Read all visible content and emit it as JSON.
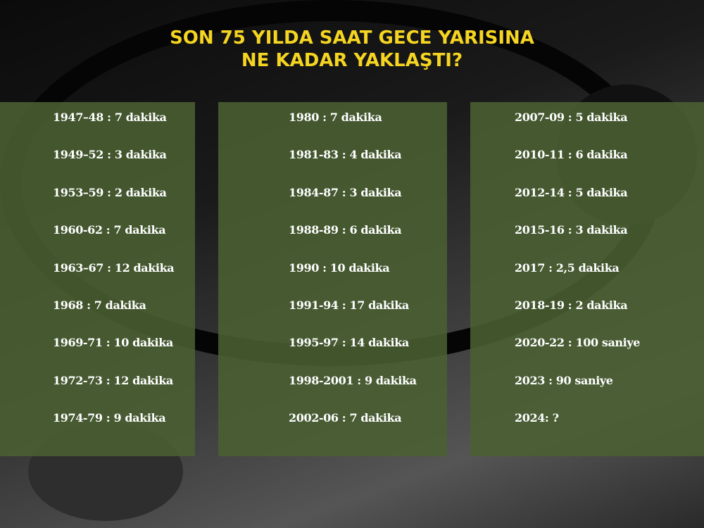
{
  "title": {
    "line1": "SON 75 YILDA SAAT GECE YARISINA",
    "line2": "NE KADAR YAKLAŞTI?"
  },
  "columns": [
    [
      "1947–48 : 7 dakika",
      "1949–52 : 3 dakika",
      "1953–59 : 2 dakika",
      "1960-62 : 7 dakika",
      "1963–67 : 12 dakika",
      "1968 : 7 dakika",
      "1969-71 : 10 dakika",
      "1972-73 : 12 dakika",
      "1974-79 : 9 dakika"
    ],
    [
      "1980 : 7 dakika",
      "1981-83 : 4 dakika",
      "1984-87 : 3 dakika",
      "1988-89 : 6 dakika",
      "1990 : 10 dakika",
      "1991-94 : 17 dakika",
      "1995-97 : 14 dakika",
      "1998-2001 : 9 dakika",
      "2002-06 : 7 dakika"
    ],
    [
      "2007-09 : 5 dakika",
      "2010-11 : 6 dakika",
      "2012-14 : 5 dakika",
      "2015-16 : 3 dakika",
      "2017 : 2,5 dakika",
      "2018-19 : 2 dakika",
      "2020-22 : 100 saniye",
      "2023 : 90 saniye",
      "2024: ?"
    ]
  ],
  "colors": {
    "title": "#f5d521",
    "panel": "#4a6032",
    "background": "#1a1a1a"
  }
}
